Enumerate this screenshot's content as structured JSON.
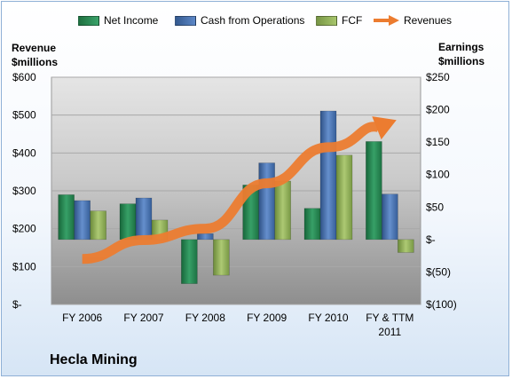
{
  "chart_data": {
    "type": "bar",
    "categories": [
      [
        "FY 2006"
      ],
      [
        "FY 2007"
      ],
      [
        "FY 2008"
      ],
      [
        "FY 2009"
      ],
      [
        "FY 2010"
      ],
      [
        "FY & TTM",
        "2011"
      ]
    ],
    "series": [
      {
        "name": "Net Income",
        "axis": "right",
        "values": [
          69,
          55,
          -68,
          84,
          48,
          151
        ],
        "color": "#2e8b57"
      },
      {
        "name": "Cash from Operations",
        "axis": "right",
        "values": [
          60,
          64,
          9,
          118,
          198,
          70
        ],
        "color": "#4a74b4"
      },
      {
        "name": "FCF",
        "axis": "right",
        "values": [
          44,
          30,
          -55,
          90,
          130,
          -20
        ],
        "color": "#93b35a"
      },
      {
        "name": "Revenues",
        "axis": "left",
        "type": "line-arrow",
        "values": [
          120,
          170,
          200,
          320,
          415,
          480
        ],
        "color": "#ec7c30"
      }
    ],
    "left_axis": {
      "title_line1": "Revenue",
      "title_line2": "$millions",
      "ylim": [
        0,
        600
      ],
      "ticks": [
        "$-",
        "$100",
        "$200",
        "$300",
        "$400",
        "$500",
        "$600"
      ]
    },
    "right_axis": {
      "title_line1": "Earnings",
      "title_line2": "$millions",
      "ylim": [
        -100,
        250
      ],
      "ticks": [
        "$(100)",
        "$(50)",
        "$-",
        "$50",
        "$100",
        "$150",
        "$200",
        "$250"
      ]
    },
    "company": "Hecla Mining",
    "grid": true,
    "legend_position": "top"
  }
}
